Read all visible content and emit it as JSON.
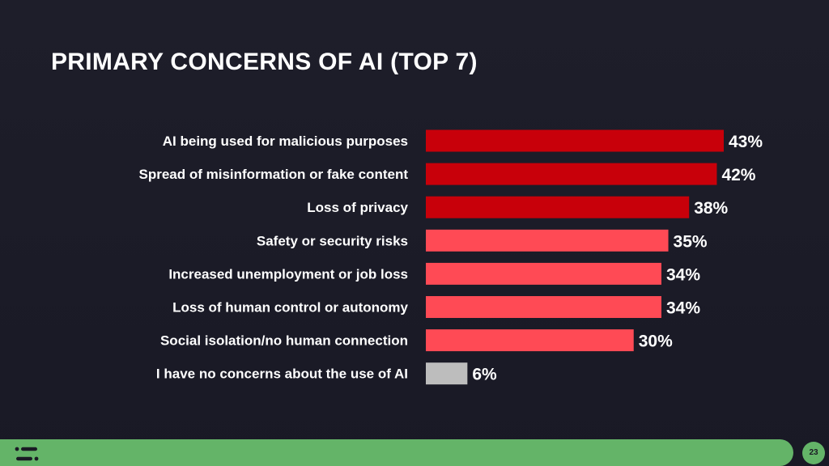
{
  "slide": {
    "page_number": "23"
  },
  "footer": {
    "logo_icon": "brand-logo-icon",
    "accent_color": "#64b468"
  },
  "chart_data": {
    "type": "bar",
    "orientation": "horizontal",
    "title": "PRIMARY CONCERNS OF AI (TOP 7)",
    "categories": [
      "AI being used for malicious purposes",
      "Spread of misinformation or fake content",
      "Loss of privacy",
      "Safety or security risks",
      "Increased unemployment or job loss",
      "Loss of human control or autonomy",
      "Social isolation/no human connection",
      "I have no concerns about the use of AI"
    ],
    "values": [
      43,
      42,
      38,
      35,
      34,
      34,
      30,
      6
    ],
    "value_labels": [
      "43%",
      "42%",
      "38%",
      "35%",
      "34%",
      "34%",
      "30%",
      "6%"
    ],
    "bar_colors": [
      "#c8000a",
      "#c8000a",
      "#c8000a",
      "#ff4a55",
      "#ff4a55",
      "#ff4a55",
      "#ff4a55",
      "#bdbdbd"
    ],
    "xlim": [
      0,
      43
    ],
    "grid": false,
    "legend": "none"
  }
}
